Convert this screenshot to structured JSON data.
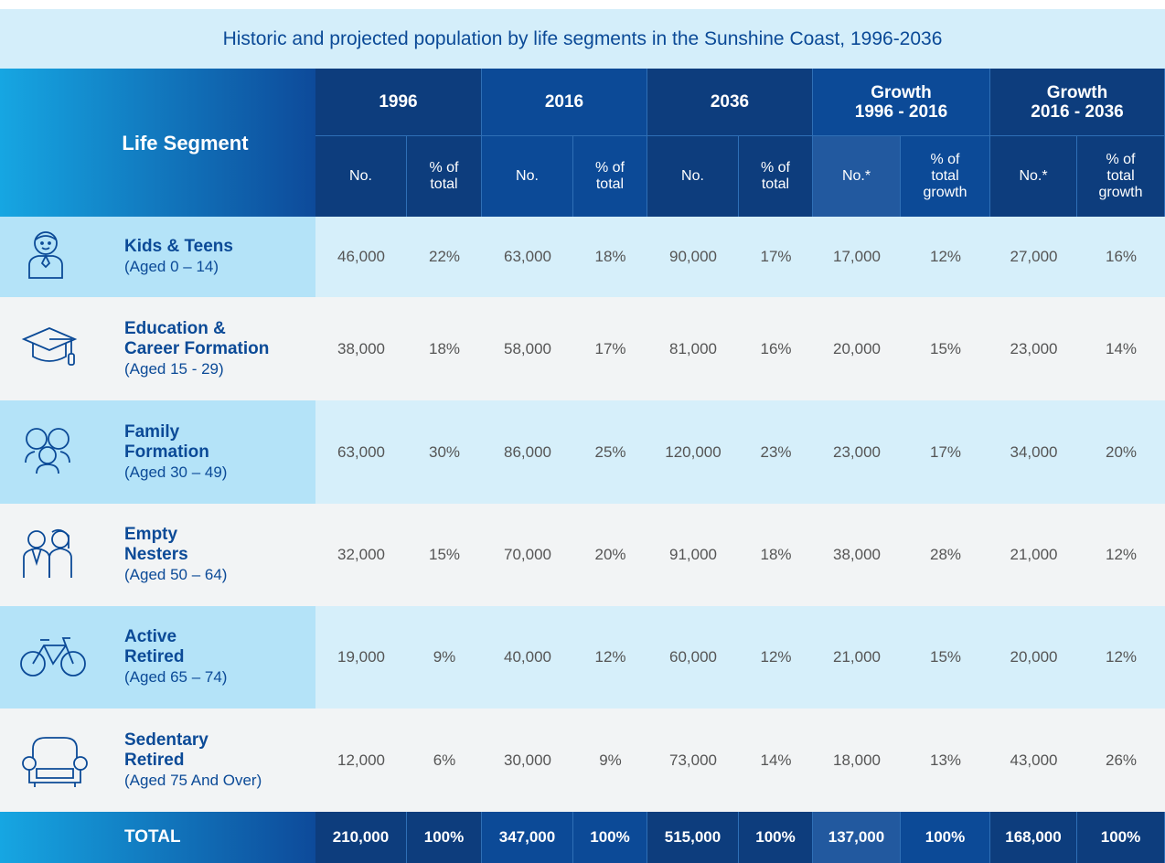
{
  "title": "Historic and projected population by life segments in the Sunshine Coast, 1996-2036",
  "header": {
    "segment_label": "Life Segment",
    "groups": [
      "1996",
      "2016",
      "2036",
      "Growth\n1996 - 2016",
      "Growth\n2016 - 2036"
    ],
    "subheaders": [
      "No.",
      "% of\ntotal",
      "No.",
      "% of\ntotal",
      "No.",
      "% of\ntotal",
      "No.*",
      "% of\ntotal\ngrowth",
      "No.*",
      "% of\ntotal\ngrowth"
    ]
  },
  "rows": [
    {
      "name": "Kids & Teens",
      "age": "(Aged 0 – 14)",
      "cells": [
        "46,000",
        "22%",
        "63,000",
        "18%",
        "90,000",
        "17%",
        "17,000",
        "12%",
        "27,000",
        "16%"
      ]
    },
    {
      "name": "Education &\nCareer Formation",
      "age": "(Aged 15 - 29)",
      "cells": [
        "38,000",
        "18%",
        "58,000",
        "17%",
        "81,000",
        "16%",
        "20,000",
        "15%",
        "23,000",
        "14%"
      ]
    },
    {
      "name": "Family\nFormation",
      "age": "(Aged 30 – 49)",
      "cells": [
        "63,000",
        "30%",
        "86,000",
        "25%",
        "120,000",
        "23%",
        "23,000",
        "17%",
        "34,000",
        "20%"
      ]
    },
    {
      "name": "Empty\nNesters",
      "age": "(Aged 50 – 64)",
      "cells": [
        "32,000",
        "15%",
        "70,000",
        "20%",
        "91,000",
        "18%",
        "38,000",
        "28%",
        "21,000",
        "12%"
      ]
    },
    {
      "name": "Active\nRetired",
      "age": "(Aged 65 – 74)",
      "cells": [
        "19,000",
        "9%",
        "40,000",
        "12%",
        "60,000",
        "12%",
        "21,000",
        "15%",
        "20,000",
        "12%"
      ]
    },
    {
      "name": "Sedentary\nRetired",
      "age": "(Aged 75 And Over)",
      "cells": [
        "12,000",
        "6%",
        "30,000",
        "9%",
        "73,000",
        "14%",
        "18,000",
        "13%",
        "43,000",
        "26%"
      ]
    }
  ],
  "total": {
    "label": "TOTAL",
    "cells": [
      "210,000",
      "100%",
      "347,000",
      "100%",
      "515,000",
      "100%",
      "137,000",
      "100%",
      "168,000",
      "100%"
    ]
  }
}
